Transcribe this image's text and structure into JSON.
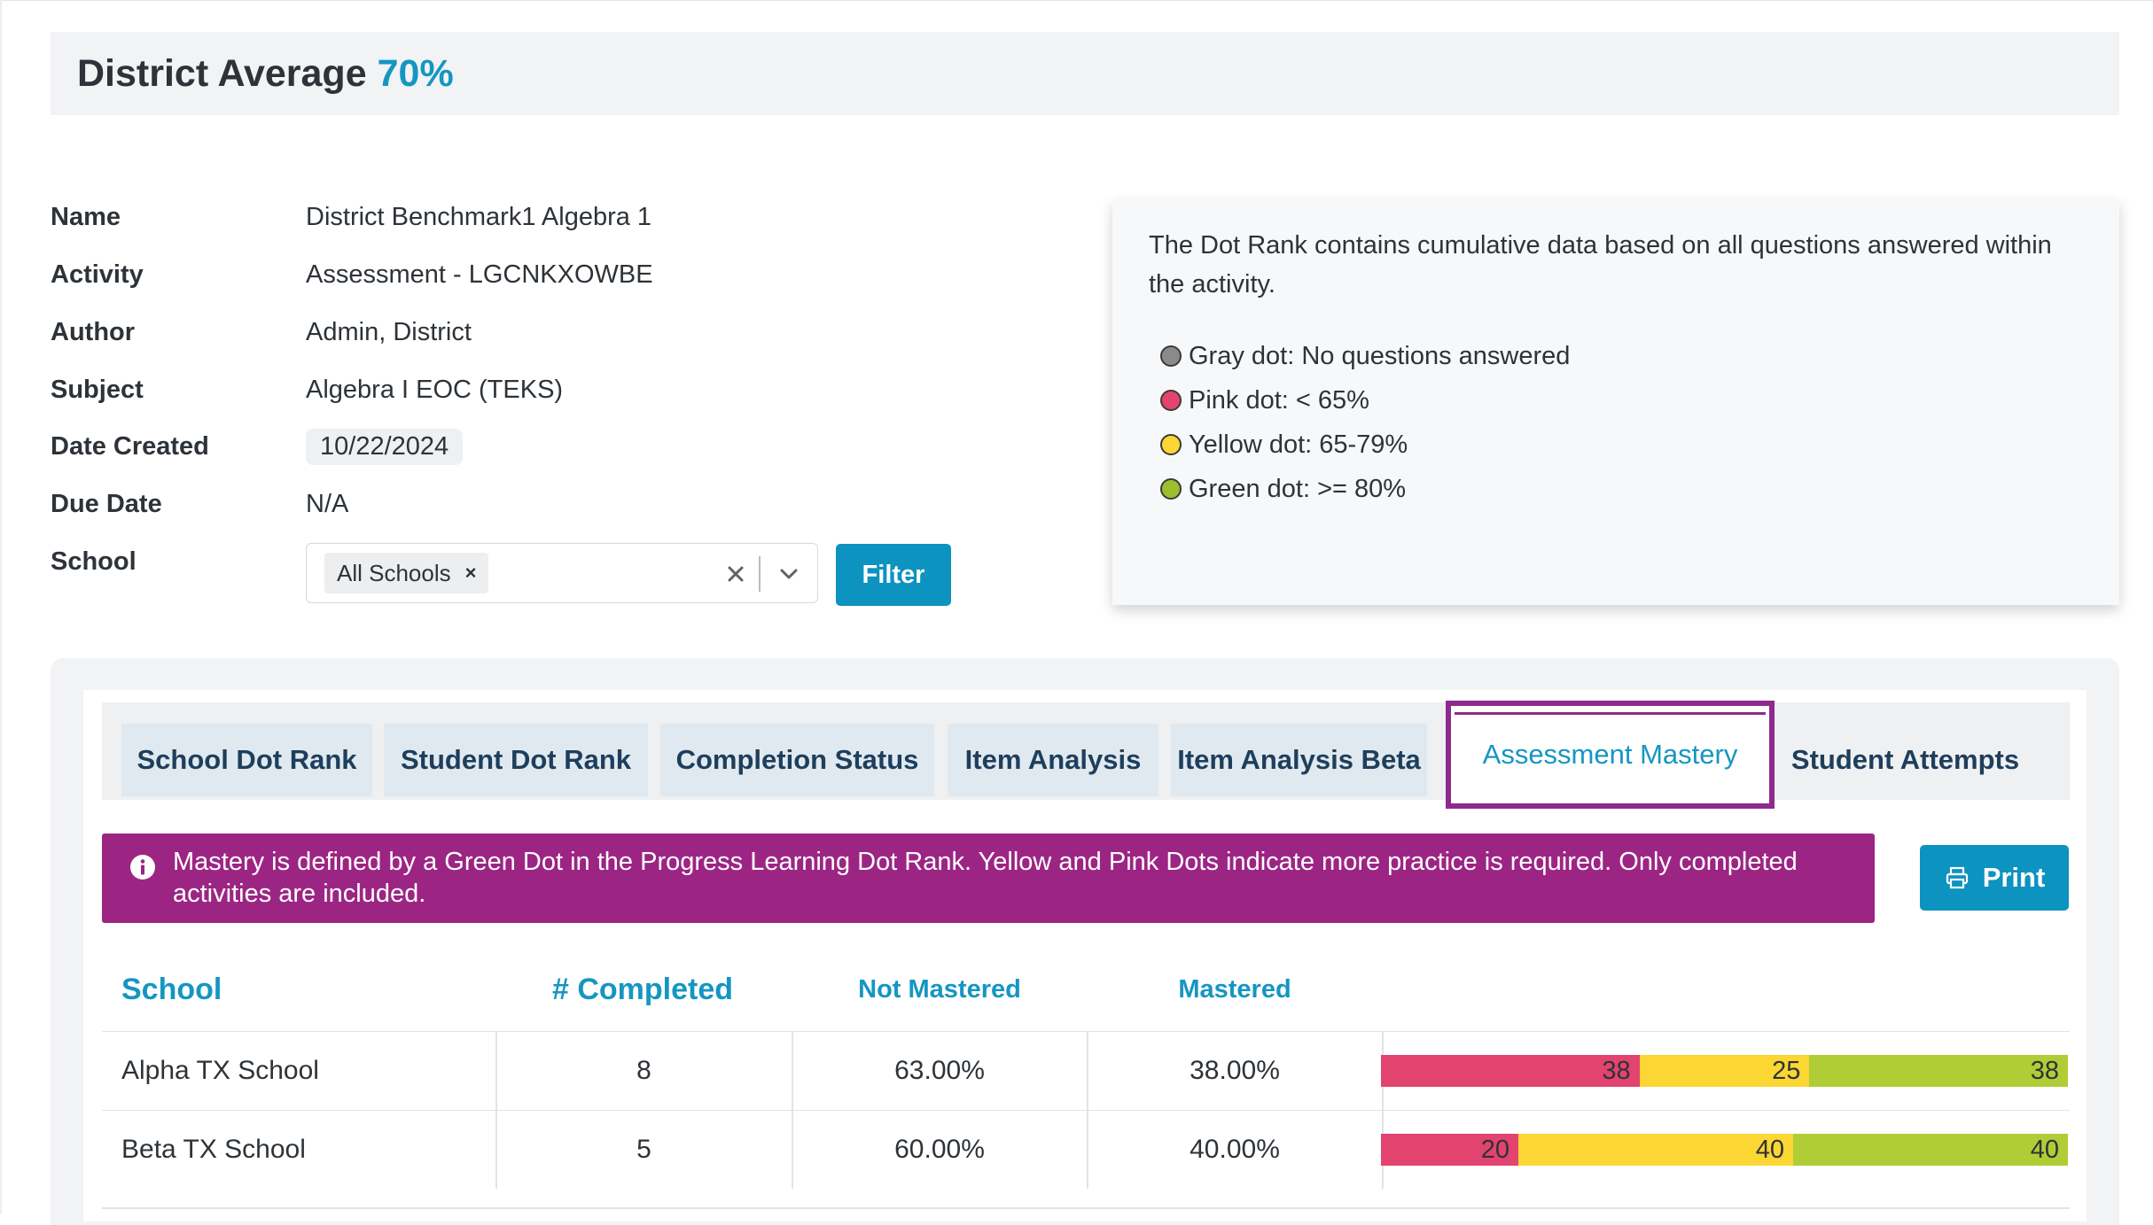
{
  "header": {
    "title": "District Average",
    "average": "70%"
  },
  "details": {
    "name_label": "Name",
    "name_value": "District Benchmark1 Algebra 1",
    "activity_label": "Activity",
    "activity_value": "Assessment - LGCNKXOWBE",
    "author_label": "Author",
    "author_value": "Admin, District",
    "subject_label": "Subject",
    "subject_value": "Algebra I EOC (TEKS)",
    "date_created_label": "Date Created",
    "date_created_value": "10/22/2024",
    "due_date_label": "Due Date",
    "due_date_value": "N/A",
    "school_label": "School"
  },
  "school_filter": {
    "selected": "All Schools",
    "remove_glyph": "×",
    "filter_label": "Filter"
  },
  "dot_rank_info": {
    "description": "The Dot Rank contains cumulative data based on all questions answered within the activity.",
    "legend": [
      {
        "label": "Gray dot: No questions answered",
        "color": "#8a8a8a"
      },
      {
        "label": "Pink dot: < 65%",
        "color": "#e3436f"
      },
      {
        "label": "Yellow dot: 65-79%",
        "color": "#fcd632"
      },
      {
        "label": "Green dot: >= 80%",
        "color": "#9cbe2f"
      }
    ]
  },
  "tabs": [
    {
      "label": "School Dot Rank"
    },
    {
      "label": "Student Dot Rank"
    },
    {
      "label": "Completion Status"
    },
    {
      "label": "Item Analysis"
    },
    {
      "label": "Item Analysis Beta"
    },
    {
      "label": "Assessment Mastery",
      "active": true
    },
    {
      "label": "Student Attempts"
    }
  ],
  "banner": {
    "text": "Mastery is defined by a Green Dot in the Progress Learning Dot Rank. Yellow and Pink Dots indicate more practice is required. Only completed activities are included.",
    "color": "#9c2584"
  },
  "print_label": "Print",
  "table": {
    "headers": {
      "school": "School",
      "completed": "# Completed",
      "not_mastered": "Not Mastered",
      "mastered": "Mastered"
    },
    "rows": [
      {
        "school": "Alpha TX School",
        "completed": "8",
        "not_mastered": "63.00%",
        "mastered": "38.00%",
        "bar": {
          "pink": 38,
          "yellow": 25,
          "green": 38
        }
      },
      {
        "school": "Beta TX School",
        "completed": "5",
        "not_mastered": "60.00%",
        "mastered": "40.00%",
        "bar": {
          "pink": 20,
          "yellow": 40,
          "green": 40
        }
      }
    ]
  },
  "colors": {
    "accent": "#1596c2",
    "button": "#0d93c0",
    "active_tab_border": "#8e2a8e",
    "pink": "#e3436f",
    "yellow": "#fcd632",
    "green": "#b0cd35"
  }
}
